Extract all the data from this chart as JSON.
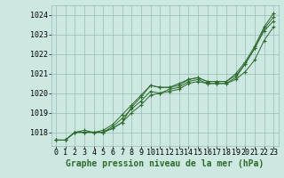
{
  "bg_color": "#cce8e0",
  "grid_color": "#99bbbb",
  "line_color": "#2d6a2d",
  "title": "Graphe pression niveau de la mer (hPa)",
  "title_fontsize": 7,
  "tick_fontsize": 6,
  "ylim": [
    1017.3,
    1024.5
  ],
  "xlim": [
    -0.5,
    23.5
  ],
  "yticks": [
    1018,
    1019,
    1020,
    1021,
    1022,
    1023,
    1024
  ],
  "xticks": [
    0,
    1,
    2,
    3,
    4,
    5,
    6,
    7,
    8,
    9,
    10,
    11,
    12,
    13,
    14,
    15,
    16,
    17,
    18,
    19,
    20,
    21,
    22,
    23
  ],
  "lines": [
    [
      1017.6,
      1017.6,
      1018.0,
      1018.0,
      1018.0,
      1018.0,
      1018.2,
      1018.5,
      1019.0,
      1019.4,
      1019.9,
      1020.0,
      1020.2,
      1020.3,
      1020.6,
      1020.7,
      1020.5,
      1020.5,
      1020.5,
      1020.8,
      1021.5,
      1022.3,
      1023.2,
      1023.7
    ],
    [
      1017.6,
      1017.6,
      1018.0,
      1018.1,
      1018.0,
      1018.1,
      1018.4,
      1018.9,
      1019.4,
      1019.9,
      1020.4,
      1020.3,
      1020.3,
      1020.4,
      1020.7,
      1020.8,
      1020.6,
      1020.6,
      1020.6,
      1020.9,
      1021.5,
      1022.3,
      1023.3,
      1023.9
    ],
    [
      1017.6,
      1017.6,
      1018.0,
      1018.0,
      1018.0,
      1018.0,
      1018.3,
      1018.7,
      1019.2,
      1019.6,
      1020.1,
      1020.0,
      1020.1,
      1020.2,
      1020.5,
      1020.6,
      1020.5,
      1020.5,
      1020.5,
      1020.7,
      1021.1,
      1021.7,
      1022.7,
      1023.4
    ],
    [
      1017.6,
      1017.6,
      1018.0,
      1018.0,
      1018.0,
      1018.0,
      1018.2,
      1018.5,
      1019.3,
      1019.8,
      1020.4,
      1020.3,
      1020.3,
      1020.5,
      1020.7,
      1020.8,
      1020.6,
      1020.6,
      1020.6,
      1021.0,
      1021.6,
      1022.4,
      1023.4,
      1024.1
    ]
  ]
}
